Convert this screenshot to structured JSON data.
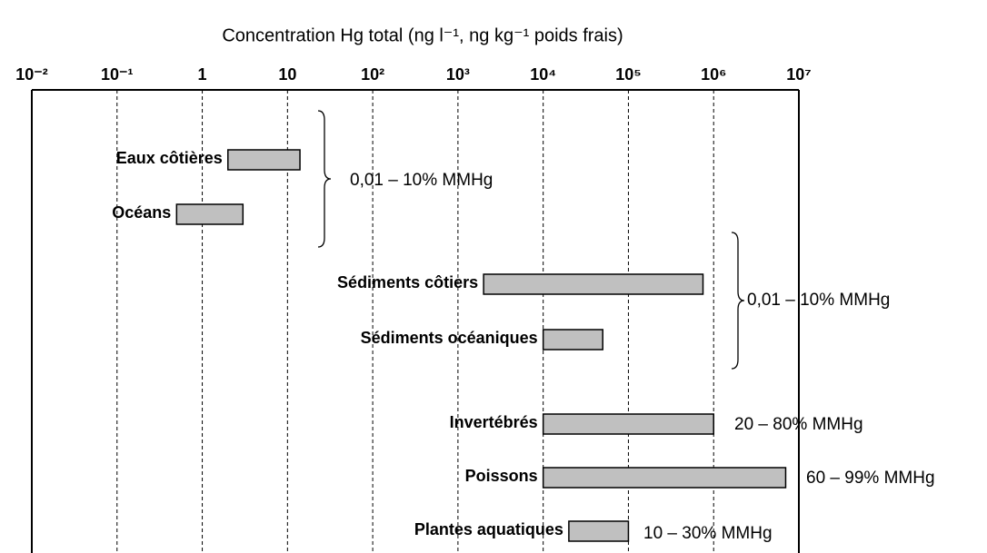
{
  "chart_data": {
    "type": "range_bar",
    "title": "Concentration Hg total (ng l⁻¹, ng kg⁻¹ poids frais)",
    "log_x": true,
    "xlim": [
      0.01,
      10000000
    ],
    "xticks": [
      {
        "value": 0.01,
        "label": "10⁻²"
      },
      {
        "value": 0.1,
        "label": "10⁻¹"
      },
      1,
      10,
      {
        "value": 100,
        "label": "10²"
      },
      {
        "value": 1000,
        "label": "10³"
      },
      {
        "value": 10000,
        "label": "10⁴"
      },
      {
        "value": 100000,
        "label": "10⁵"
      },
      {
        "value": 1000000,
        "label": "10⁶"
      },
      {
        "value": 10000000,
        "label": "10⁷"
      }
    ],
    "grid": true,
    "color": "#c0c0c0",
    "categories": [
      "Eaux côtières",
      "Océans",
      "Sédiments côtiers",
      "Sédiments océaniques",
      "Invertébrés",
      "Poissons",
      "Plantes aquatiques"
    ],
    "values": [
      [
        2,
        14
      ],
      [
        0.5,
        3
      ],
      [
        2000,
        750000
      ],
      [
        10000,
        50000
      ],
      [
        10000,
        1000000
      ],
      [
        10000,
        7000000
      ],
      [
        20000,
        100000
      ]
    ],
    "annotations": [
      "0,01 – 10% MMHg",
      "0,01 – 10% MMHg",
      "20 – 80% MMHg",
      "60 – 99% MMHg",
      "10 – 30% MMHg"
    ]
  }
}
